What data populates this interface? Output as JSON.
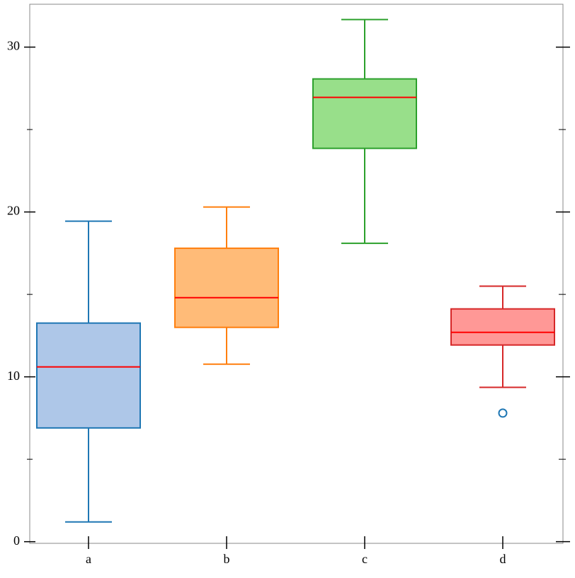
{
  "chart_data": {
    "type": "box",
    "categories": [
      "a",
      "b",
      "c",
      "d"
    ],
    "boxes": [
      {
        "whislo": 1.2,
        "q1": 6.9,
        "med": 10.6,
        "q3": 13.26,
        "whishi": 19.44,
        "fliers": []
      },
      {
        "whislo": 10.77,
        "q1": 13.0,
        "med": 14.8,
        "q3": 17.8,
        "whishi": 20.3,
        "fliers": []
      },
      {
        "whislo": 18.1,
        "q1": 23.86,
        "med": 26.95,
        "q3": 28.07,
        "whishi": 31.67,
        "fliers": []
      },
      {
        "whislo": 9.36,
        "q1": 11.93,
        "med": 12.7,
        "q3": 14.12,
        "whishi": 15.5,
        "fliers": [
          7.8
        ]
      }
    ],
    "edge_colors": [
      "#1f77b4",
      "#ff7f0e",
      "#2ca02c",
      "#d62728"
    ],
    "fill_colors": [
      "#aec7e8",
      "#ffbb78",
      "#98df8a",
      "#ff9896"
    ],
    "median_color": "#ff0000",
    "flier_color": "#1f77b4",
    "ylim": [
      -0.1,
      32.6
    ],
    "yticks": [
      0,
      10,
      20,
      30
    ],
    "yminor_ticks": [
      5,
      15,
      25
    ],
    "grid": false
  }
}
